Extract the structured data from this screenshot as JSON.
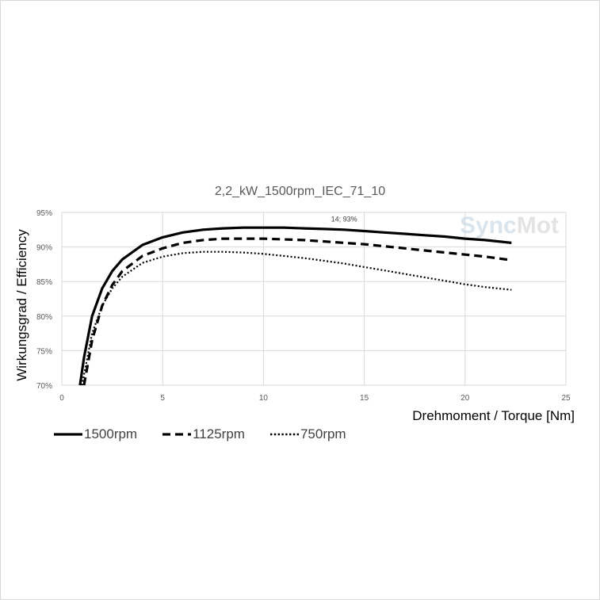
{
  "chart_data": {
    "type": "line",
    "title": "2,2_kW_1500rpm_IEC_71_10",
    "xlabel": "Drehmoment / Torque [Nm]",
    "ylabel": "Wirkungsgrad / Efficiency",
    "xlim": [
      0,
      25
    ],
    "ylim": [
      70,
      95
    ],
    "x_ticks": [
      "0",
      "5",
      "10",
      "15",
      "20",
      "25"
    ],
    "y_ticks": [
      "70%",
      "75%",
      "80%",
      "85%",
      "90%",
      "95%"
    ],
    "grid": true,
    "legend_position": "bottom",
    "annotation": {
      "text": "14; 93%",
      "x": 14,
      "y": 93
    },
    "series": [
      {
        "name": "1500rpm",
        "style": "solid",
        "x": [
          0.9,
          1.1,
          1.5,
          2,
          2.5,
          3,
          4,
          5,
          6,
          7,
          8,
          9,
          10,
          11,
          12,
          13,
          14,
          15,
          16,
          17,
          18,
          19,
          20,
          21,
          22.3
        ],
        "y": [
          70,
          74,
          80,
          84,
          86.5,
          88.2,
          90.3,
          91.4,
          92.1,
          92.5,
          92.7,
          92.8,
          92.8,
          92.8,
          92.7,
          92.6,
          92.5,
          92.3,
          92.1,
          91.9,
          91.7,
          91.5,
          91.2,
          91,
          90.6
        ]
      },
      {
        "name": "1125rpm",
        "style": "dashed",
        "x": [
          1.1,
          1.5,
          2,
          2.5,
          3,
          4,
          5,
          6,
          7,
          8,
          9,
          10,
          11,
          12,
          13,
          14,
          15,
          16,
          17,
          18,
          19,
          20,
          21,
          22.3
        ],
        "y": [
          70,
          76.5,
          81.5,
          84.5,
          86.5,
          88.7,
          89.8,
          90.6,
          91,
          91.2,
          91.2,
          91.2,
          91.1,
          91,
          90.8,
          90.6,
          90.4,
          90.1,
          89.8,
          89.5,
          89.2,
          88.9,
          88.6,
          88.1
        ]
      },
      {
        "name": "750rpm",
        "style": "dotted",
        "x": [
          1,
          1.5,
          2,
          2.5,
          3,
          4,
          5,
          6,
          7,
          8,
          9,
          10,
          11,
          12,
          13,
          14,
          15,
          16,
          17,
          18,
          19,
          20,
          21,
          22.3
        ],
        "y": [
          70,
          77.5,
          81.5,
          84,
          85.7,
          87.7,
          88.6,
          89.1,
          89.3,
          89.3,
          89.2,
          89,
          88.7,
          88.4,
          88,
          87.6,
          87.1,
          86.6,
          86.1,
          85.6,
          85.1,
          84.6,
          84.2,
          83.8
        ]
      }
    ]
  },
  "watermark": {
    "part1": "Sync",
    "part2": "Mot"
  }
}
